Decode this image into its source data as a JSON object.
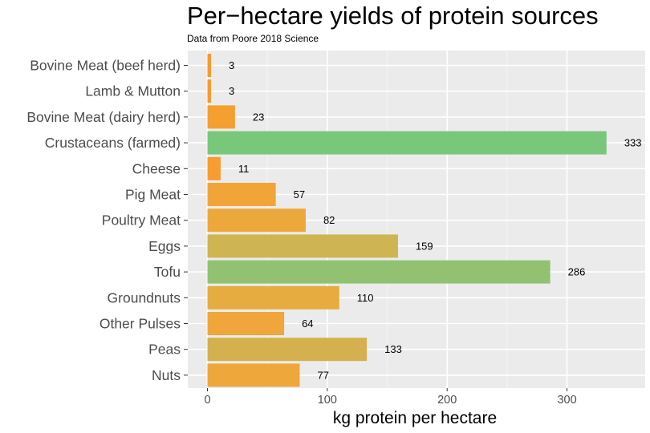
{
  "chart_data": {
    "type": "bar",
    "orientation": "horizontal",
    "title": "Per−hectare yields of protein sources",
    "subtitle": "Data from Poore 2018 Science",
    "xlabel": "kg protein per hectare",
    "ylabel": "",
    "xlim": [
      -8,
      350
    ],
    "xticks": [
      0,
      100,
      200,
      300
    ],
    "grid": true,
    "legend": "none",
    "categories": [
      "Bovine Meat (beef herd)",
      "Lamb & Mutton",
      "Bovine Meat (dairy herd)",
      "Crustaceans (farmed)",
      "Cheese",
      "Pig Meat",
      "Poultry Meat",
      "Eggs",
      "Tofu",
      "Groundnuts",
      "Other Pulses",
      "Peas",
      "Nuts"
    ],
    "values": [
      3,
      3,
      23,
      333,
      11,
      57,
      82,
      159,
      286,
      110,
      64,
      133,
      77
    ],
    "data_labels": [
      "3",
      "3",
      "23",
      "333",
      "11",
      "57",
      "82",
      "159",
      "286",
      "110",
      "64",
      "133",
      "77"
    ],
    "colors": [
      "#f79a2e",
      "#f79a2e",
      "#f59f31",
      "#79c77b",
      "#f79c30",
      "#f1a539",
      "#eda83c",
      "#cfb452",
      "#92c271",
      "#e6ac40",
      "#f0a63a",
      "#d4b04e",
      "#eea73b"
    ]
  }
}
